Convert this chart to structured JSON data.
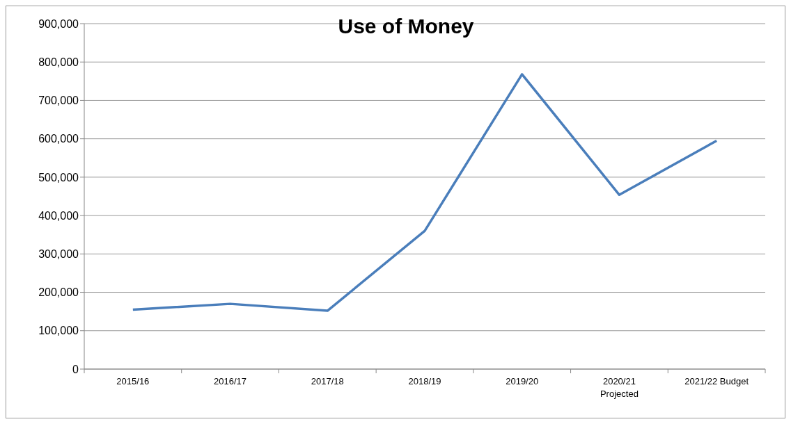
{
  "chart_data": {
    "type": "line",
    "title": "Use of Money",
    "categories": [
      "2015/16",
      "2016/17",
      "2017/18",
      "2018/19",
      "2019/20",
      "2020/21\nProjected",
      "2021/22 Budget"
    ],
    "series": [
      {
        "color": "#4a7ebb",
        "values": [
          155000,
          170000,
          152000,
          360000,
          768000,
          454000,
          595000
        ]
      }
    ],
    "ylim": [
      0,
      900000
    ],
    "yticks": [
      0,
      {
        "value": 100000,
        "label": "100,000"
      },
      {
        "value": 200000,
        "label": "200,000"
      },
      {
        "value": 300000,
        "label": "300,000"
      },
      {
        "value": 400000,
        "label": "400,000"
      },
      {
        "value": 500000,
        "label": "500,000"
      },
      {
        "value": 600000,
        "label": "600,000"
      },
      {
        "value": 700000,
        "label": "700,000"
      },
      {
        "value": 800000,
        "label": "800,000"
      },
      {
        "value": 900000,
        "label": "900,000"
      }
    ],
    "grid": "y",
    "marker": "none",
    "line_style": "solid"
  }
}
